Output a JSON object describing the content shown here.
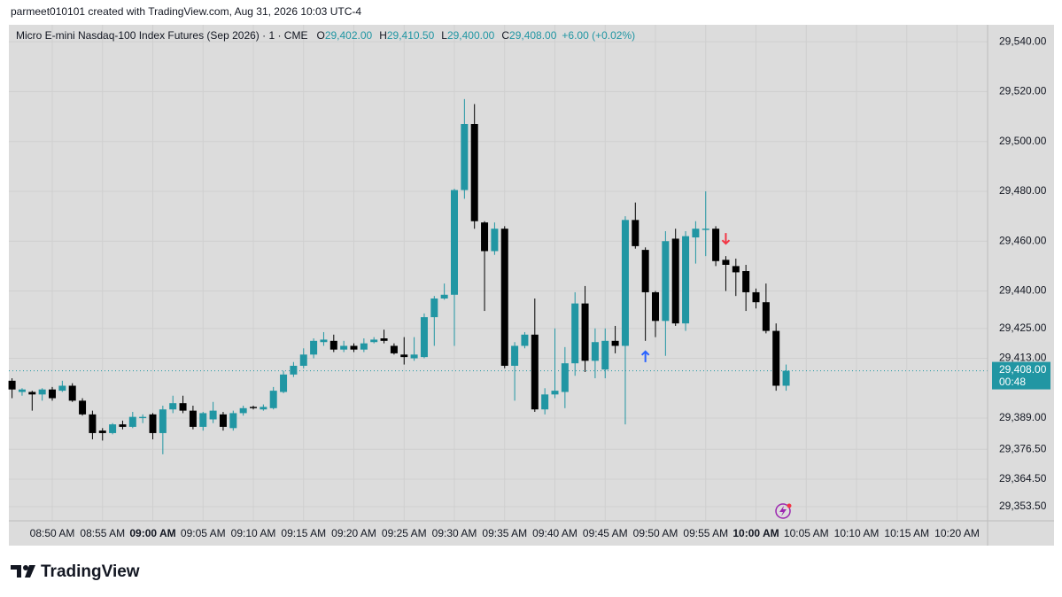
{
  "caption": "parmeet010101 created with TradingView.com, Aug 31, 2026 10:03 UTC-4",
  "brand": "TradingView",
  "chart_data": {
    "type": "candlestick",
    "title": "Micro E-mini Nasdaq-100 Index Futures (Sep 2026) · 1 · CME",
    "legend_fields": [
      {
        "key": "O",
        "value": "29,402.00"
      },
      {
        "key": "H",
        "value": "29,410.50"
      },
      {
        "key": "L",
        "value": "29,400.00"
      },
      {
        "key": "C",
        "value": "29,408.00"
      }
    ],
    "change": "+6.00 (+0.02%)",
    "up_color": "#2196a3",
    "down_color": "#000000",
    "x": [
      "08:46 AM",
      "08:47 AM",
      "08:48 AM",
      "08:49 AM",
      "08:50 AM",
      "08:51 AM",
      "08:52 AM",
      "08:53 AM",
      "08:54 AM",
      "08:55 AM",
      "08:56 AM",
      "08:57 AM",
      "08:58 AM",
      "08:59 AM",
      "09:00 AM",
      "09:01 AM",
      "09:02 AM",
      "09:03 AM",
      "09:04 AM",
      "09:05 AM",
      "09:06 AM",
      "09:07 AM",
      "09:08 AM",
      "09:09 AM",
      "09:10 AM",
      "09:11 AM",
      "09:12 AM",
      "09:13 AM",
      "09:14 AM",
      "09:15 AM",
      "09:16 AM",
      "09:17 AM",
      "09:18 AM",
      "09:19 AM",
      "09:20 AM",
      "09:21 AM",
      "09:22 AM",
      "09:23 AM",
      "09:24 AM",
      "09:25 AM",
      "09:26 AM",
      "09:27 AM",
      "09:28 AM",
      "09:29 AM",
      "09:30 AM",
      "09:31 AM",
      "09:32 AM",
      "09:33 AM",
      "09:34 AM",
      "09:35 AM",
      "09:36 AM",
      "09:37 AM",
      "09:38 AM",
      "09:39 AM",
      "09:40 AM",
      "09:41 AM",
      "09:42 AM",
      "09:43 AM",
      "09:44 AM",
      "09:45 AM",
      "09:46 AM",
      "09:47 AM",
      "09:48 AM",
      "09:49 AM",
      "09:50 AM",
      "09:51 AM",
      "09:52 AM",
      "09:53 AM",
      "09:54 AM",
      "09:55 AM",
      "09:56 AM",
      "09:57 AM",
      "09:58 AM",
      "09:59 AM",
      "10:00 AM",
      "10:01 AM",
      "10:02 AM",
      "10:03 AM"
    ],
    "open": [
      29404,
      29399.5,
      29399.5,
      29398.5,
      29400.5,
      29400,
      29402,
      29396,
      29390.5,
      29384,
      29383,
      29386.5,
      29385.5,
      29389,
      29390.5,
      29383,
      29392.5,
      29395,
      29392,
      29385.5,
      29388.5,
      29390.5,
      29385,
      29391,
      29393.5,
      29392.5,
      29393,
      29399.5,
      29406.5,
      29410,
      29414.5,
      29419.5,
      29420,
      29416.5,
      29418,
      29416.5,
      29419.5,
      29421,
      29418,
      29414.5,
      29413,
      29413.5,
      29429.5,
      29437,
      29438.5,
      29480.5,
      29507,
      29467.5,
      29456,
      29465,
      29410,
      29418,
      29422.5,
      29392.5,
      29398.5,
      29399.5,
      29411,
      29435,
      29412,
      29408.5,
      29420,
      29418,
      29468.5,
      29456.5,
      29439.5,
      29428,
      29461,
      29427,
      29461.5,
      29464.5,
      29465,
      29452.5,
      29450,
      29448,
      29439.5,
      29435.5,
      29424,
      29402
    ],
    "high": [
      29405,
      29401,
      29400,
      29401,
      29401.5,
      29404,
      29403,
      29397,
      29392,
      29385,
      29387,
      29388,
      29391.5,
      29390.5,
      29391,
      29394,
      29398,
      29398,
      29394,
      29391.5,
      29395.5,
      29391.5,
      29392,
      29394,
      29394,
      29394.5,
      29401.5,
      29408,
      29411.5,
      29417,
      29421,
      29423.5,
      29422.5,
      29420,
      29419,
      29421,
      29421.5,
      29424.5,
      29419,
      29421.5,
      29421.5,
      29431,
      29438,
      29443,
      29481,
      29517,
      29515,
      29468,
      29467.5,
      29466,
      29419.5,
      29423.5,
      29437,
      29401,
      29425,
      29417.5,
      29439.5,
      29442,
      29425,
      29425,
      29426,
      29470,
      29475.5,
      29457.5,
      29440,
      29464,
      29465,
      29464,
      29468,
      29480,
      29466,
      29454,
      29453,
      29450.5,
      29441,
      29443,
      29427,
      29410.5
    ],
    "low": [
      29397,
      29398,
      29392,
      29396,
      29396,
      29399.5,
      29395.5,
      29390,
      29380.5,
      29380,
      29382.5,
      29384.5,
      29385,
      29387,
      29380.5,
      29374.5,
      29391,
      29391,
      29384.5,
      29384,
      29387,
      29384,
      29384,
      29390,
      29392.5,
      29392,
      29392.5,
      29399,
      29405.5,
      29409,
      29413,
      29418,
      29415.5,
      29415.5,
      29415.5,
      29415.5,
      29419,
      29419,
      29414.5,
      29410.5,
      29412,
      29413,
      29418,
      29436.5,
      29418,
      29477,
      29465,
      29432,
      29454.5,
      29409,
      29396,
      29417,
      29391.5,
      29390.5,
      29397,
      29393,
      29406,
      29407.5,
      29405,
      29405,
      29415,
      29386.5,
      29457,
      29420,
      29421.5,
      29414,
      29426,
      29424,
      29451,
      29454,
      29450,
      29440,
      29438,
      29432,
      29433,
      29423,
      29400,
      29400
    ],
    "close": [
      29400.5,
      29400.5,
      29398.5,
      29400.5,
      29397,
      29402,
      29396,
      29390.5,
      29383,
      29383,
      29386.5,
      29385.5,
      29389.5,
      29389.5,
      29383,
      29392.5,
      29395,
      29392,
      29385.5,
      29391,
      29392,
      29385.5,
      29391,
      29393,
      29393,
      29393.5,
      29400,
      29406.5,
      29410,
      29414.5,
      29420,
      29420.5,
      29416.5,
      29418,
      29416.5,
      29419,
      29420.5,
      29420,
      29415,
      29413.5,
      29414.5,
      29429.5,
      29437,
      29438.5,
      29480.5,
      29507,
      29468,
      29456,
      29465,
      29410,
      29418,
      29422.5,
      29392.5,
      29398.5,
      29400,
      29411,
      29435,
      29412,
      29419.5,
      29420,
      29418,
      29468.5,
      29458,
      29439.5,
      29428,
      29460,
      29427,
      29462,
      29465,
      29465,
      29452,
      29450.5,
      29447.5,
      29439.5,
      29435.5,
      29424,
      29402,
      29408
    ],
    "xticks": [
      "08:50 AM",
      "08:55 AM",
      "09:00 AM",
      "09:05 AM",
      "09:10 AM",
      "09:15 AM",
      "09:20 AM",
      "09:25 AM",
      "09:30 AM",
      "09:35 AM",
      "09:40 AM",
      "09:45 AM",
      "09:50 AM",
      "09:55 AM",
      "10:00 AM",
      "10:05 AM",
      "10:10 AM",
      "10:15 AM",
      "10:20 AM"
    ],
    "ylim": [
      29347.8,
      29546.8
    ],
    "yticks": [
      {
        "value": 29540,
        "label": "29,540.00"
      },
      {
        "value": 29520,
        "label": "29,520.00"
      },
      {
        "value": 29500,
        "label": "29,500.00"
      },
      {
        "value": 29480,
        "label": "29,480.00"
      },
      {
        "value": 29460,
        "label": "29,460.00"
      },
      {
        "value": 29440,
        "label": "29,440.00"
      },
      {
        "value": 29425,
        "label": "29,425.00"
      },
      {
        "value": 29413,
        "label": "29,413.00"
      },
      {
        "value": 29389,
        "label": "29,389.00"
      },
      {
        "value": 29376.5,
        "label": "29,376.50"
      },
      {
        "value": 29364.5,
        "label": "29,364.50"
      },
      {
        "value": 29353.5,
        "label": "29,353.50"
      }
    ],
    "grid": true,
    "last_price": {
      "value": 29408,
      "label": "29,408.00"
    },
    "countdown": "00:48",
    "markers": [
      {
        "x": "09:49 AM",
        "direction": "up",
        "color": "#2962ff"
      },
      {
        "x": "09:57 AM",
        "direction": "down",
        "color": "#f23645"
      }
    ]
  }
}
